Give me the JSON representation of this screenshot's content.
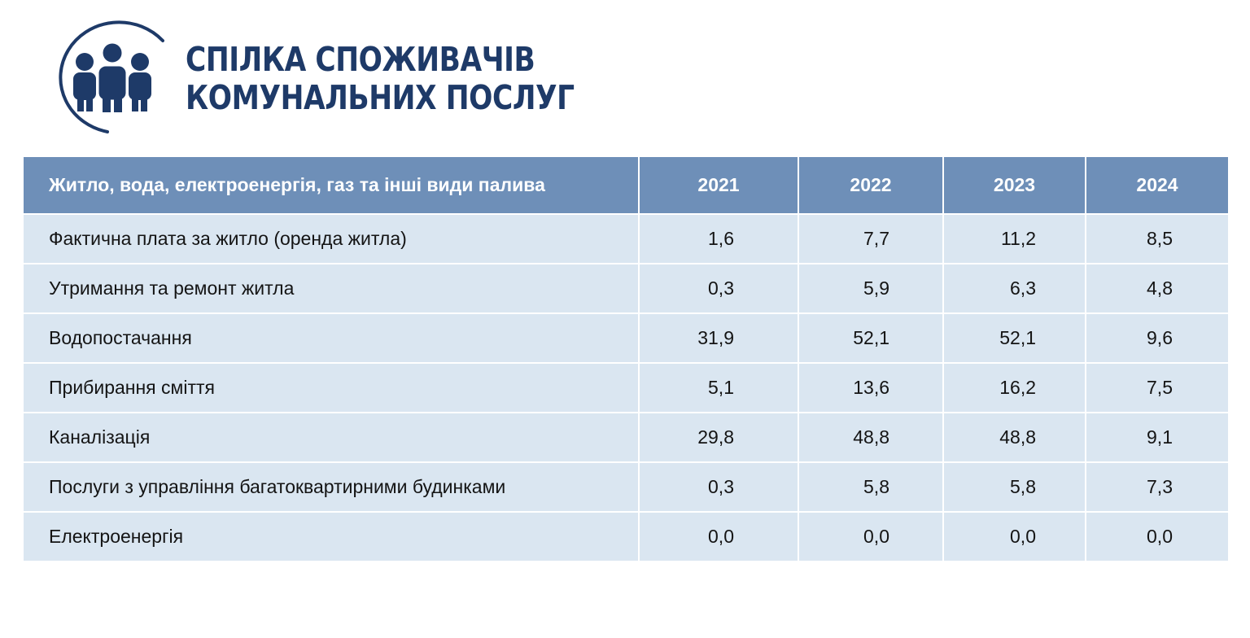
{
  "logo": {
    "line1": "СПІЛКА СПОЖИВАЧІВ",
    "line2": "КОМУНАЛЬНИХ ПОСЛУГ",
    "color": "#1e3a68"
  },
  "table": {
    "header": {
      "label": "Житло, вода, електроенергія, газ та інші види палива",
      "years": [
        "2021",
        "2022",
        "2023",
        "2024"
      ]
    },
    "rows": [
      {
        "label": "Фактична плата за житло (оренда житла)",
        "values": [
          "1,6",
          "7,7",
          "11,2",
          "8,5"
        ]
      },
      {
        "label": "Утримання та ремонт житла",
        "values": [
          "0,3",
          "5,9",
          "6,3",
          "4,8"
        ]
      },
      {
        "label": "Водопостачання",
        "values": [
          "31,9",
          "52,1",
          "52,1",
          "9,6"
        ]
      },
      {
        "label": "Прибирання сміття",
        "values": [
          "5,1",
          "13,6",
          "16,2",
          "7,5"
        ]
      },
      {
        "label": "Каналізація",
        "values": [
          "29,8",
          "48,8",
          "48,8",
          "9,1"
        ]
      },
      {
        "label": "Послуги з управління багатоквартирними будинками",
        "values": [
          "0,3",
          "5,8",
          "5,8",
          "7,3"
        ]
      },
      {
        "label": "Електроенергія",
        "values": [
          "0,0",
          "0,0",
          "0,0",
          "0,0"
        ]
      }
    ],
    "header_color": "#6e8fb8",
    "row_color": "#dae6f1"
  }
}
